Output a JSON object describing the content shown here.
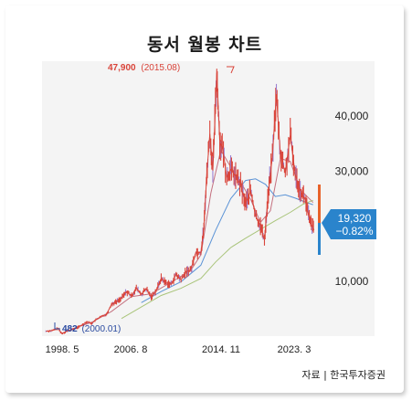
{
  "page": {
    "title": "동서 월봉 차트",
    "source": "자료 | 한국투자증권"
  },
  "chart_data": {
    "type": "line",
    "title": "동서 월봉 차트",
    "x_ticks": [
      "1998. 5",
      "2006. 8",
      "2014. 11",
      "2023. 3"
    ],
    "y_ticks": [
      "10,000",
      "20,000",
      "30,000",
      "40,000"
    ],
    "y_tick_values": [
      10000,
      20000,
      30000,
      40000
    ],
    "ylim": [
      0,
      50000
    ],
    "xlim": [
      1998.0,
      2025.6
    ],
    "grid": false,
    "annotations": {
      "high": {
        "value": "47,900",
        "date": "(2015.08)"
      },
      "low": {
        "value": "482",
        "date": "(2000.01)"
      },
      "current": {
        "price": "19,320",
        "change": "−0.82%"
      }
    },
    "series": [
      {
        "type": "price",
        "x": [
          1998.4,
          1999.0,
          1999.6,
          2000.0,
          2000.5,
          2001.0,
          2001.5,
          2002.0,
          2002.5,
          2003.0,
          2003.5,
          2004.0,
          2004.5,
          2005.0,
          2005.5,
          2006.0,
          2006.5,
          2007.0,
          2007.5,
          2008.0,
          2008.5,
          2009.0,
          2009.5,
          2010.0,
          2010.5,
          2011.0,
          2011.5,
          2012.0,
          2012.5,
          2013.0,
          2013.5,
          2014.0,
          2014.3,
          2014.6,
          2014.9,
          2015.2,
          2015.6,
          2015.9,
          2016.2,
          2016.6,
          2017.0,
          2017.5,
          2018.0,
          2018.5,
          2019.0,
          2019.5,
          2020.0,
          2020.4,
          2020.8,
          2021.2,
          2021.6,
          2022.0,
          2022.5,
          2023.0,
          2023.5,
          2024.0,
          2024.5,
          2025.0,
          2025.4
        ],
        "y": [
          900,
          1000,
          1400,
          482,
          900,
          1200,
          1500,
          2000,
          2600,
          2300,
          3100,
          3600,
          4000,
          5800,
          6300,
          6900,
          8100,
          7300,
          8700,
          7600,
          8600,
          7100,
          8300,
          10500,
          9700,
          9400,
          11200,
          10200,
          11700,
          12100,
          15300,
          15200,
          19800,
          29500,
          36800,
          30100,
          47900,
          35300,
          34100,
          28900,
          30300,
          29100,
          27500,
          24100,
          26500,
          21900,
          20100,
          17500,
          26200,
          32700,
          44000,
          33200,
          29600,
          36500,
          29400,
          26600,
          24900,
          20700,
          19320
        ]
      },
      {
        "type": "ma-short",
        "x": [
          2001.0,
          2003.0,
          2005.0,
          2007.0,
          2009.0,
          2011.0,
          2013.0,
          2014.0,
          2015.0,
          2016.0,
          2017.0,
          2018.0,
          2019.0,
          2020.0,
          2021.0,
          2022.0,
          2023.0,
          2024.0,
          2025.3
        ],
        "y": [
          1300,
          2500,
          4500,
          7200,
          7700,
          9800,
          12000,
          14800,
          26000,
          33800,
          30800,
          28000,
          24900,
          20700,
          22800,
          32300,
          31800,
          26700,
          24300
        ]
      },
      {
        "type": "ma-mid",
        "x": [
          2008.0,
          2010.0,
          2012.0,
          2014.0,
          2015.5,
          2017.0,
          2018.5,
          2019.5,
          2020.5,
          2021.5,
          2022.5,
          2023.5,
          2024.5,
          2025.3
        ],
        "y": [
          6100,
          8100,
          9900,
          12900,
          19300,
          25000,
          28300,
          28600,
          27600,
          25400,
          25700,
          25100,
          24400,
          23900
        ]
      },
      {
        "type": "ma-long",
        "x": [
          2006.0,
          2008.0,
          2010.0,
          2012.0,
          2014.0,
          2015.5,
          2017.0,
          2018.5,
          2020.0,
          2021.5,
          2023.0,
          2024.3,
          2025.3
        ],
        "y": [
          3200,
          5300,
          7400,
          8700,
          10500,
          13500,
          16100,
          17800,
          19400,
          21000,
          22500,
          24000,
          24700
        ]
      }
    ]
  },
  "colors": {
    "price": "#d9443a",
    "price_highlight": "#9b7fd0",
    "ma_short": "#c4707f",
    "ma_mid": "#5b93d6",
    "ma_long": "#a9c47a",
    "plot_bg": "#f4f4f4",
    "badge": "#2a84cc",
    "high_label": "#d9443a",
    "low_label": "#2a4aa0",
    "current_bar_up": "#e8622a",
    "current_bar_down": "#2a84cc"
  }
}
